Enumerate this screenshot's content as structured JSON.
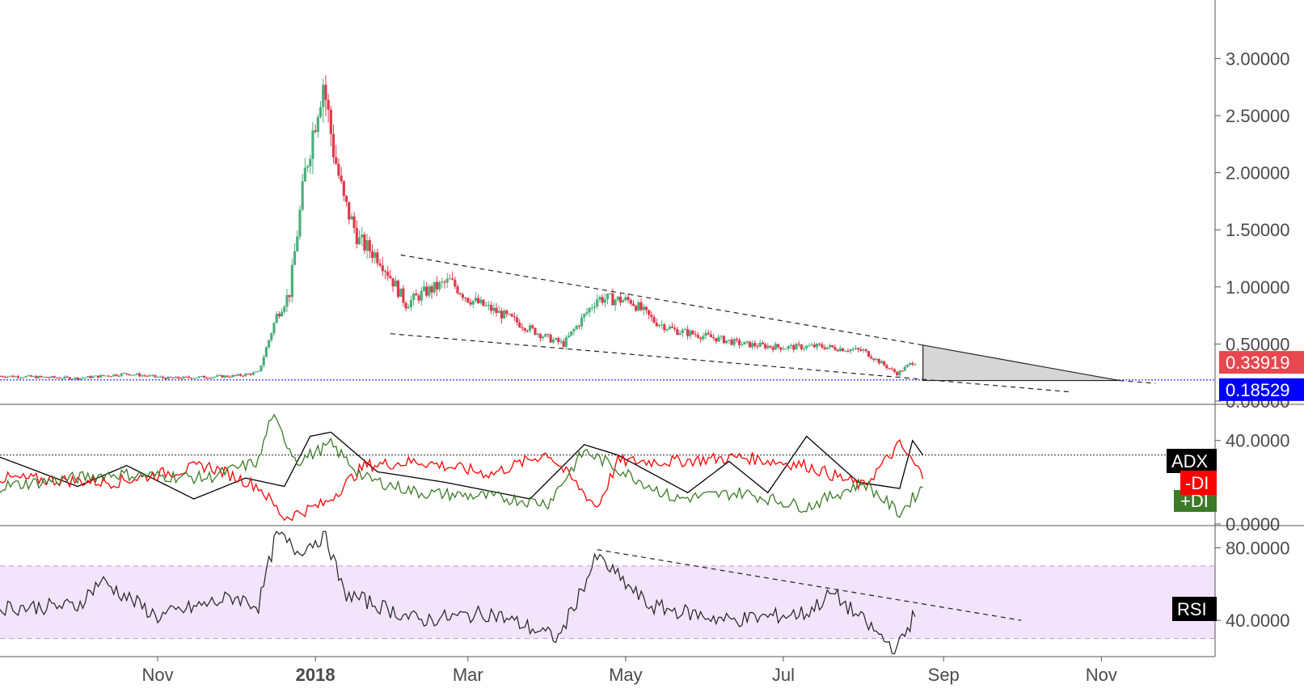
{
  "colors": {
    "up": "#4caf7d",
    "down": "#e0394b",
    "grid_axis": "#555555",
    "baseline": "#1a1aff",
    "adx": "#000000",
    "minus_di": "#ff0000",
    "plus_di": "#3c7a28",
    "rsi": "#222222",
    "rsi_band": "#f1e4fb",
    "wedge": "#d6d6d6",
    "last_price_bg": "#e8474f",
    "base_price_bg": "#0000ff"
  },
  "chart_data": [
    {
      "type": "candlestick",
      "panel": "price",
      "title": "",
      "ylim": [
        0,
        3.3
      ],
      "y_ticks": [
        "3.00000",
        "2.50000",
        "2.00000",
        "1.50000",
        "1.00000",
        "0.50000",
        "0.00000"
      ],
      "y_tick_values": [
        3.0,
        2.5,
        2.0,
        1.5,
        1.0,
        0.5,
        0.0
      ],
      "x_ticks": [
        "Nov",
        "2018",
        "Mar",
        "May",
        "Jul",
        "Sep",
        "Nov"
      ],
      "x_tick_dates": [
        "2017-11-01",
        "2018-01-01",
        "2018-03-01",
        "2018-05-01",
        "2018-07-01",
        "2018-09-01",
        "2018-11-01"
      ],
      "x_range": [
        "2017-09-01",
        "2018-12-15"
      ],
      "close_anchors": [
        [
          "2017-09-01",
          0.22
        ],
        [
          "2017-10-01",
          0.2
        ],
        [
          "2017-10-20",
          0.24
        ],
        [
          "2017-11-05",
          0.2
        ],
        [
          "2017-12-01",
          0.22
        ],
        [
          "2017-12-10",
          0.25
        ],
        [
          "2017-12-17",
          0.75
        ],
        [
          "2017-12-22",
          0.95
        ],
        [
          "2017-12-28",
          2.0
        ],
        [
          "2018-01-02",
          2.6
        ],
        [
          "2018-01-04",
          2.8
        ],
        [
          "2018-01-08",
          2.2
        ],
        [
          "2018-01-12",
          1.75
        ],
        [
          "2018-01-18",
          1.4
        ],
        [
          "2018-01-26",
          1.25
        ],
        [
          "2018-02-05",
          0.85
        ],
        [
          "2018-02-12",
          0.95
        ],
        [
          "2018-02-22",
          1.05
        ],
        [
          "2018-03-01",
          0.9
        ],
        [
          "2018-03-15",
          0.75
        ],
        [
          "2018-04-01",
          0.55
        ],
        [
          "2018-04-07",
          0.5
        ],
        [
          "2018-04-20",
          0.9
        ],
        [
          "2018-05-03",
          0.88
        ],
        [
          "2018-05-12",
          0.7
        ],
        [
          "2018-05-20",
          0.62
        ],
        [
          "2018-06-05",
          0.55
        ],
        [
          "2018-06-15",
          0.5
        ],
        [
          "2018-07-01",
          0.47
        ],
        [
          "2018-07-15",
          0.48
        ],
        [
          "2018-08-01",
          0.44
        ],
        [
          "2018-08-10",
          0.3
        ],
        [
          "2018-08-14",
          0.24
        ],
        [
          "2018-08-20",
          0.34
        ]
      ],
      "last_price": "0.33919",
      "last_price_value": 0.33919,
      "base_price": "0.18529",
      "base_price_value": 0.18529,
      "trendlines": [
        {
          "from": [
            "2018-02-03",
            1.28
          ],
          "to": [
            "2018-08-24",
            0.49
          ]
        },
        {
          "from": [
            "2018-01-30",
            0.59
          ],
          "to": [
            "2018-10-20",
            0.08
          ]
        }
      ],
      "wedge": {
        "points": [
          [
            "2018-08-24",
            0.49
          ],
          [
            "2018-11-08",
            0.18
          ],
          [
            "2018-08-24",
            0.18
          ]
        ]
      }
    },
    {
      "type": "line",
      "panel": "dmi",
      "ylim": [
        0,
        55
      ],
      "y_ticks": [
        "40.0000",
        "0.0000"
      ],
      "y_tick_values": [
        40,
        0
      ],
      "reference_line": 33,
      "series": [
        {
          "name": "ADX",
          "anchors": [
            [
              "2017-09-01",
              32
            ],
            [
              "2017-10-01",
              18
            ],
            [
              "2017-10-20",
              28
            ],
            [
              "2017-11-15",
              12
            ],
            [
              "2017-12-05",
              22
            ],
            [
              "2017-12-20",
              18
            ],
            [
              "2017-12-30",
              42
            ],
            [
              "2018-01-07",
              44
            ],
            [
              "2018-01-25",
              25
            ],
            [
              "2018-02-20",
              20
            ],
            [
              "2018-03-25",
              12
            ],
            [
              "2018-04-15",
              38
            ],
            [
              "2018-04-28",
              33
            ],
            [
              "2018-05-25",
              15
            ],
            [
              "2018-06-10",
              30
            ],
            [
              "2018-06-25",
              15
            ],
            [
              "2018-07-10",
              42
            ],
            [
              "2018-07-30",
              20
            ],
            [
              "2018-08-15",
              17
            ],
            [
              "2018-08-20",
              40
            ],
            [
              "2018-08-24",
              33
            ]
          ]
        },
        {
          "name": "-DI",
          "anchors": [
            [
              "2017-09-01",
              22
            ],
            [
              "2017-10-15",
              20
            ],
            [
              "2017-11-20",
              28
            ],
            [
              "2017-12-10",
              18
            ],
            [
              "2017-12-20",
              3
            ],
            [
              "2018-01-05",
              10
            ],
            [
              "2018-01-20",
              28
            ],
            [
              "2018-02-10",
              30
            ],
            [
              "2018-03-10",
              24
            ],
            [
              "2018-04-01",
              34
            ],
            [
              "2018-04-20",
              8
            ],
            [
              "2018-04-28",
              30
            ],
            [
              "2018-05-20",
              30
            ],
            [
              "2018-06-15",
              32
            ],
            [
              "2018-07-10",
              28
            ],
            [
              "2018-08-01",
              18
            ],
            [
              "2018-08-15",
              38
            ],
            [
              "2018-08-24",
              23
            ]
          ]
        },
        {
          "name": "+DI",
          "anchors": [
            [
              "2017-09-01",
              18
            ],
            [
              "2017-10-15",
              24
            ],
            [
              "2017-11-20",
              22
            ],
            [
              "2017-12-10",
              30
            ],
            [
              "2017-12-15",
              52
            ],
            [
              "2017-12-25",
              30
            ],
            [
              "2018-01-07",
              38
            ],
            [
              "2018-01-20",
              22
            ],
            [
              "2018-02-10",
              15
            ],
            [
              "2018-03-10",
              13
            ],
            [
              "2018-04-01",
              10
            ],
            [
              "2018-04-15",
              35
            ],
            [
              "2018-05-20",
              12
            ],
            [
              "2018-06-15",
              15
            ],
            [
              "2018-07-10",
              8
            ],
            [
              "2018-08-01",
              20
            ],
            [
              "2018-08-15",
              5
            ],
            [
              "2018-08-24",
              18
            ]
          ]
        }
      ],
      "labels": [
        "ADX",
        "-DI",
        "+DI"
      ]
    },
    {
      "type": "line",
      "panel": "rsi",
      "ylim": [
        20,
        90
      ],
      "y_ticks": [
        "80.0000",
        "40.0000"
      ],
      "y_tick_values": [
        80,
        40
      ],
      "band": [
        30,
        70
      ],
      "series": [
        {
          "name": "RSI",
          "anchors": [
            [
              "2017-09-01",
              47
            ],
            [
              "2017-10-01",
              48
            ],
            [
              "2017-10-10",
              62
            ],
            [
              "2017-11-01",
              42
            ],
            [
              "2017-12-01",
              53
            ],
            [
              "2017-12-10",
              48
            ],
            [
              "2017-12-17",
              88
            ],
            [
              "2017-12-25",
              78
            ],
            [
              "2018-01-05",
              87
            ],
            [
              "2018-01-12",
              55
            ],
            [
              "2018-02-10",
              40
            ],
            [
              "2018-03-10",
              44
            ],
            [
              "2018-04-05",
              30
            ],
            [
              "2018-04-20",
              75
            ],
            [
              "2018-05-10",
              48
            ],
            [
              "2018-06-10",
              40
            ],
            [
              "2018-07-10",
              44
            ],
            [
              "2018-07-20",
              55
            ],
            [
              "2018-08-10",
              28
            ],
            [
              "2018-08-14",
              24
            ],
            [
              "2018-08-21",
              44
            ]
          ]
        }
      ],
      "trendline": {
        "from": [
          "2018-04-20",
          79
        ],
        "to": [
          "2018-10-01",
          40
        ]
      },
      "labels": [
        "RSI"
      ]
    }
  ]
}
